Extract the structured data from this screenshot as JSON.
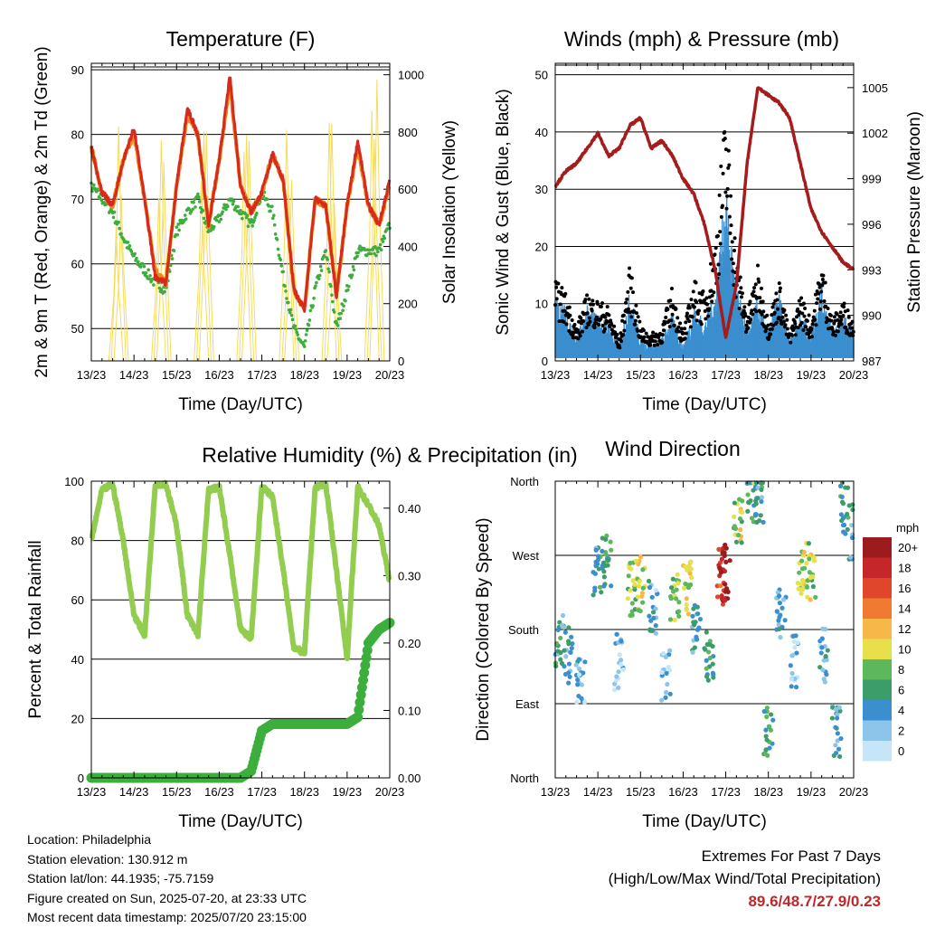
{
  "colors": {
    "temp_2m": "#d62a1f",
    "temp_9m": "#f08a1e",
    "dewpoint": "#3cae3c",
    "solar": "#f7dc5a",
    "wind": "#3b8fcf",
    "gust": "#000000",
    "pressure": "#a51c1c",
    "rh": "#93cd4f",
    "precip": "#3cae3c"
  },
  "time_ticks": [
    "13/23",
    "14/23",
    "15/23",
    "16/23",
    "17/23",
    "18/23",
    "19/23",
    "20/23"
  ],
  "time_xlabel": "Time (Day/UTC)",
  "chart_data": [
    {
      "type": "line",
      "title": "Temperature (F)",
      "xlabel": "Time (Day/UTC)",
      "ylabel": "2m & 9m T (Red, Orange) & 2m Td (Green)",
      "y2label": "Solar Insolation (Yellow)",
      "ylim": [
        45,
        91
      ],
      "y2lim": [
        0,
        1040
      ],
      "yticks": [
        50,
        60,
        70,
        80,
        90
      ],
      "y2ticks": [
        0,
        200,
        400,
        600,
        800,
        1000
      ],
      "x": [
        13.0,
        13.25,
        13.5,
        13.75,
        14.0,
        14.25,
        14.5,
        14.75,
        15.0,
        15.25,
        15.5,
        15.75,
        16.0,
        16.25,
        16.5,
        16.75,
        17.0,
        17.25,
        17.5,
        17.75,
        18.0,
        18.25,
        18.5,
        18.75,
        19.0,
        19.25,
        19.5,
        19.75,
        20.0
      ],
      "series": [
        {
          "name": "2m T",
          "values": [
            78,
            71,
            69,
            76,
            81,
            70,
            58,
            57,
            72,
            84,
            80,
            66,
            76,
            89,
            72,
            68,
            71,
            77,
            73,
            56,
            53,
            70,
            69,
            55,
            69,
            79,
            69,
            66,
            73
          ]
        },
        {
          "name": "9m T",
          "values": [
            78,
            71,
            69,
            76,
            80,
            70,
            59,
            57,
            72,
            83,
            80,
            66,
            76,
            88,
            72,
            68,
            71,
            77,
            73,
            56,
            53,
            70,
            69,
            55,
            69,
            78,
            69,
            66,
            72
          ]
        },
        {
          "name": "2m Td",
          "values": [
            72,
            70,
            68,
            64,
            61,
            59,
            57,
            56,
            65,
            68,
            70,
            65,
            67,
            70,
            68,
            66,
            71,
            68,
            58,
            50,
            47,
            56,
            62,
            50,
            56,
            62,
            62,
            62,
            66
          ]
        },
        {
          "name": "Solar Insolation",
          "axis": "right",
          "values": [
            0,
            0,
            0,
            850,
            0,
            0,
            0,
            880,
            0,
            0,
            0,
            900,
            0,
            0,
            0,
            920,
            0,
            0,
            0,
            880,
            0,
            0,
            0,
            960,
            0,
            0,
            0,
            1020,
            0
          ]
        }
      ]
    },
    {
      "type": "line",
      "title": "Winds (mph) & Pressure (mb)",
      "xlabel": "Time (Day/UTC)",
      "ylabel": "Sonic Wind & Gust (Blue, Black)",
      "y2label": "Station Pressure (Maroon)",
      "ylim": [
        0,
        52
      ],
      "y2lim": [
        987,
        1006.6
      ],
      "yticks": [
        0,
        10,
        20,
        30,
        40,
        50
      ],
      "y2ticks": [
        987,
        990,
        993,
        996,
        999,
        1002,
        1005
      ],
      "x": [
        13.0,
        13.25,
        13.5,
        13.75,
        14.0,
        14.25,
        14.5,
        14.75,
        15.0,
        15.25,
        15.5,
        15.75,
        16.0,
        16.25,
        16.5,
        16.75,
        17.0,
        17.25,
        17.5,
        17.75,
        18.0,
        18.25,
        18.5,
        18.75,
        19.0,
        19.25,
        19.5,
        19.75,
        20.0
      ],
      "series": [
        {
          "name": "Sonic Wind",
          "values": [
            8,
            7,
            3,
            7,
            6,
            5,
            2,
            9,
            3,
            2,
            3,
            6,
            2,
            7,
            5,
            9,
            22,
            10,
            4,
            8,
            4,
            9,
            3,
            6,
            4,
            10,
            4,
            6,
            4
          ]
        },
        {
          "name": "Gust",
          "values": [
            12,
            10,
            5,
            10,
            9,
            8,
            3,
            14,
            5,
            4,
            5,
            11,
            4,
            12,
            10,
            18,
            38,
            16,
            7,
            14,
            6,
            12,
            4,
            10,
            6,
            15,
            6,
            9,
            6
          ]
        },
        {
          "name": "Station Pressure",
          "axis": "right",
          "values": [
            998.5,
            999.5,
            1000,
            1001,
            1002,
            1000.5,
            1001,
            1002.5,
            1003,
            1001,
            1001.5,
            1000.5,
            999,
            998,
            996,
            993,
            988.5,
            992,
            1000,
            1005,
            1004.5,
            1004,
            1003,
            1000,
            997,
            995.5,
            994.5,
            993.5,
            993
          ]
        }
      ]
    },
    {
      "type": "line",
      "title": "Relative Humidity (%) & Precipitation (in)",
      "xlabel": "Time (Day/UTC)",
      "ylabel": "Percent & Total Rainfall",
      "ylim": [
        0,
        100
      ],
      "y2lim": [
        0,
        0.44
      ],
      "yticks": [
        0,
        20,
        40,
        60,
        80,
        100
      ],
      "y2ticks": [
        "0.00",
        "0.10",
        "0.20",
        "0.30",
        "0.40"
      ],
      "x": [
        13.0,
        13.25,
        13.5,
        13.75,
        14.0,
        14.25,
        14.5,
        14.75,
        15.0,
        15.25,
        15.5,
        15.75,
        16.0,
        16.25,
        16.5,
        16.75,
        17.0,
        17.25,
        17.5,
        17.75,
        18.0,
        18.25,
        18.5,
        18.75,
        19.0,
        19.25,
        19.5,
        19.75,
        20.0
      ],
      "series": [
        {
          "name": "Relative Humidity",
          "values": [
            80,
            97,
            99,
            80,
            55,
            48,
            99,
            99,
            85,
            55,
            48,
            97,
            98,
            75,
            50,
            47,
            98,
            95,
            70,
            44,
            42,
            98,
            99,
            70,
            40,
            98,
            92,
            85,
            66
          ]
        },
        {
          "name": "Total Precipitation",
          "axis": "right",
          "values": [
            0,
            0,
            0,
            0,
            0,
            0,
            0,
            0,
            0,
            0,
            0,
            0,
            0,
            0,
            0,
            0.01,
            0.07,
            0.08,
            0.08,
            0.08,
            0.08,
            0.08,
            0.08,
            0.08,
            0.08,
            0.09,
            0.2,
            0.22,
            0.23
          ]
        }
      ]
    },
    {
      "type": "scatter",
      "title": "Wind Direction",
      "xlabel": "Time (Day/UTC)",
      "ylabel": "Direction (Colored By Speed)",
      "yticks": [
        "North",
        "East",
        "South",
        "West",
        "North"
      ],
      "ylim": [
        0,
        360
      ],
      "colorbar_title": "mph",
      "colorbar_labels": [
        "0",
        "2",
        "4",
        "6",
        "8",
        "10",
        "12",
        "14",
        "16",
        "18",
        "20+"
      ],
      "colorbar_colors": [
        "#c6e6f8",
        "#8cc4ea",
        "#3b8fcf",
        "#3c9c6a",
        "#5cb85a",
        "#e8e04a",
        "#f7b84a",
        "#f07a32",
        "#e0462a",
        "#c4262a",
        "#9c1c1e"
      ],
      "x": [
        13.1,
        13.3,
        13.6,
        14.0,
        14.2,
        14.5,
        14.8,
        15.0,
        15.3,
        15.6,
        15.8,
        16.1,
        16.3,
        16.6,
        16.9,
        17.0,
        17.3,
        17.6,
        17.8,
        18.0,
        18.3,
        18.6,
        18.8,
        19.0,
        19.3,
        19.6,
        19.8,
        20.0
      ],
      "values": [
        165,
        150,
        120,
        255,
        260,
        140,
        230,
        235,
        205,
        120,
        215,
        230,
        175,
        150,
        245,
        250,
        310,
        345,
        330,
        55,
        200,
        140,
        240,
        250,
        150,
        60,
        330,
        300
      ],
      "speeds": [
        5,
        4,
        3,
        5,
        6,
        2,
        8,
        10,
        3,
        2,
        8,
        10,
        4,
        6,
        17,
        20,
        9,
        7,
        5,
        6,
        3,
        2,
        10,
        9,
        3,
        4,
        5,
        4
      ]
    }
  ],
  "info": {
    "location": "Location: Philadelphia",
    "elevation": "Station elevation: 130.912 m",
    "latlon": "Station lat/lon: 44.1935; -75.7159",
    "created": "Figure created on Sun, 2025-07-20, at 23:33 UTC",
    "timestamp": "Most recent data timestamp: 2025/07/20 23:15:00"
  },
  "extremes": {
    "title": "Extremes For Past 7 Days",
    "subtitle": "(High/Low/Max Wind/Total Precipitation)",
    "values": "89.6/48.7/27.9/0.23"
  }
}
